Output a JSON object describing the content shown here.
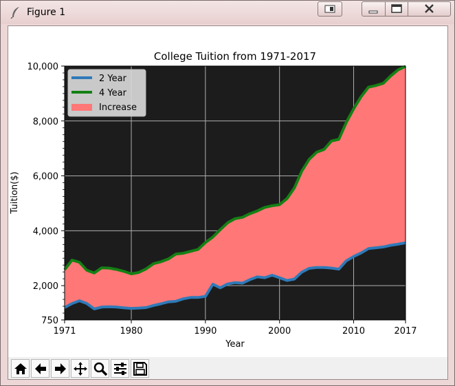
{
  "window": {
    "title": "Figure 1"
  },
  "toolbar": {
    "tools": [
      "home-icon",
      "back-arrow-icon",
      "forward-arrow-icon",
      "pan-icon",
      "zoom-icon",
      "configure-subplots-icon",
      "save-icon"
    ]
  },
  "colors": {
    "plot_bg": "#1c1c1c",
    "two_year": "#2f7ab8",
    "four_year": "#148014",
    "increase": "#ff7777"
  },
  "chart_data": {
    "type": "area",
    "title": "College Tuition from 1971-2017",
    "xlabel": "Year",
    "ylabel": "Tuition($)",
    "xlim": [
      1971,
      2017
    ],
    "ylim": [
      750,
      10000
    ],
    "grid": true,
    "legend_position": "top-left",
    "x_ticks": [
      "1971",
      "1980",
      "1990",
      "2000",
      "2010",
      "2017"
    ],
    "y_ticks": [
      "750",
      "2,000",
      "4,000",
      "6,000",
      "8,000",
      "10,000"
    ],
    "x": [
      1971,
      1972,
      1973,
      1974,
      1975,
      1976,
      1977,
      1978,
      1979,
      1980,
      1981,
      1982,
      1983,
      1984,
      1985,
      1986,
      1987,
      1988,
      1989,
      1990,
      1991,
      1992,
      1993,
      1994,
      1995,
      1996,
      1997,
      1998,
      1999,
      2000,
      2001,
      2002,
      2003,
      2004,
      2005,
      2006,
      2007,
      2008,
      2009,
      2010,
      2011,
      2012,
      2013,
      2014,
      2015,
      2016,
      2017
    ],
    "series": [
      {
        "name": "2 Year",
        "values": [
          1200,
          1350,
          1450,
          1350,
          1150,
          1220,
          1230,
          1220,
          1190,
          1170,
          1180,
          1200,
          1280,
          1340,
          1410,
          1430,
          1520,
          1570,
          1570,
          1610,
          2050,
          1920,
          2060,
          2110,
          2090,
          2220,
          2320,
          2290,
          2380,
          2290,
          2190,
          2240,
          2490,
          2630,
          2660,
          2660,
          2640,
          2600,
          2900,
          3060,
          3190,
          3350,
          3380,
          3410,
          3470,
          3510,
          3560
        ]
      },
      {
        "name": "4 Year",
        "values": [
          2580,
          2930,
          2850,
          2560,
          2460,
          2650,
          2640,
          2590,
          2520,
          2430,
          2480,
          2610,
          2800,
          2870,
          2970,
          3150,
          3180,
          3250,
          3320,
          3570,
          3770,
          4040,
          4290,
          4440,
          4490,
          4620,
          4720,
          4850,
          4910,
          4950,
          5170,
          5560,
          6170,
          6600,
          6860,
          6960,
          7270,
          7330,
          7940,
          8440,
          8880,
          9230,
          9290,
          9370,
          9640,
          9860,
          9990
        ]
      }
    ],
    "fill": {
      "name": "Increase",
      "between": [
        "2 Year",
        "4 Year"
      ]
    }
  }
}
